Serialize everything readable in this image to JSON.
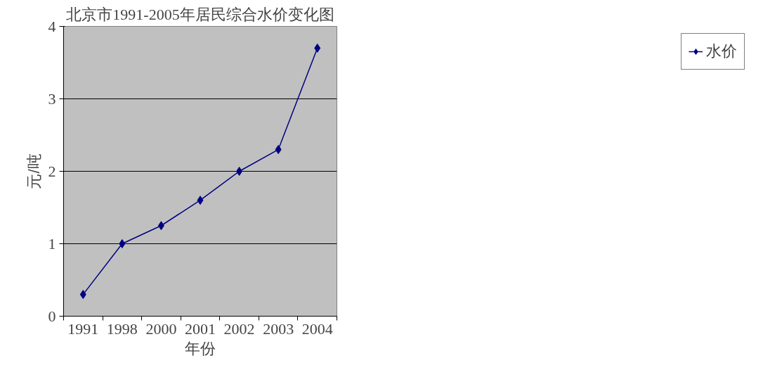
{
  "chart_data": {
    "type": "line",
    "title": "北京市1991-2005年居民综合水价变化图",
    "xlabel": "年份",
    "ylabel": "元/吨",
    "categories": [
      "1991",
      "1998",
      "2000",
      "2001",
      "2002",
      "2003",
      "2004"
    ],
    "series": [
      {
        "name": "水价",
        "color": "#000080",
        "values": [
          0.3,
          1.0,
          1.25,
          1.6,
          2.0,
          2.3,
          3.7
        ]
      }
    ],
    "ylim": [
      0,
      4
    ],
    "yticks": [
      0,
      1,
      2,
      3,
      4
    ],
    "grid": "y",
    "legend": "right",
    "marker": "diamond",
    "line_style": "solid"
  }
}
